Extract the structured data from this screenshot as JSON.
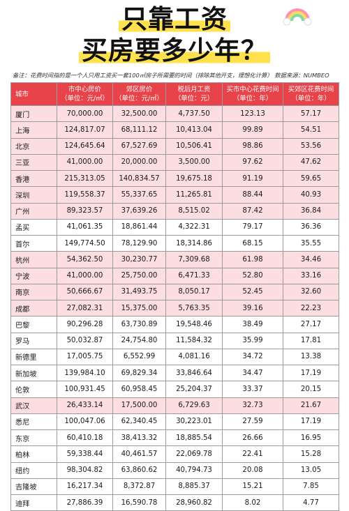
{
  "title_line1": "只靠工资",
  "title_line2": "买房要多少年？",
  "note": "备注：花费时间指的是一个人只用工资买一套100㎡房子所需要的时间（排除其他开支，理想化计算）  数据来源：NUMBEO",
  "headers": [
    {
      "line1": "城市",
      "line2": ""
    },
    {
      "line1": "市中心房价",
      "line2": "（单位：元/㎡）"
    },
    {
      "line1": "郊区房价",
      "line2": "（单位：元/㎡）"
    },
    {
      "line1": "税后月工资",
      "line2": "（单位：元）"
    },
    {
      "line1": "买市中心花费时间",
      "line2": "（单位：年）"
    },
    {
      "line1": "买郊区花费时间",
      "line2": "（单位：年）"
    }
  ],
  "rows": [
    {
      "city": "厦门",
      "center": "70,000.00",
      "suburb": "32,500.00",
      "salary": "4,737.50",
      "center_years": "123.13",
      "suburb_years": "57.17",
      "highlight": true
    },
    {
      "city": "上海",
      "center": "124,817.07",
      "suburb": "68,111.12",
      "salary": "10,413.04",
      "center_years": "99.89",
      "suburb_years": "54.51",
      "highlight": true
    },
    {
      "city": "北京",
      "center": "124,645.64",
      "suburb": "67,527.69",
      "salary": "10,506.41",
      "center_years": "98.86",
      "suburb_years": "53.56",
      "highlight": true
    },
    {
      "city": "三亚",
      "center": "41,000.00",
      "suburb": "20,000.00",
      "salary": "3,500.00",
      "center_years": "97.62",
      "suburb_years": "47.62",
      "highlight": true
    },
    {
      "city": "香港",
      "center": "215,313.05",
      "suburb": "140,834.57",
      "salary": "19,675.18",
      "center_years": "91.19",
      "suburb_years": "59.65",
      "highlight": true
    },
    {
      "city": "深圳",
      "center": "119,558.37",
      "suburb": "55,337.65",
      "salary": "11,265.81",
      "center_years": "88.44",
      "suburb_years": "40.93",
      "highlight": true
    },
    {
      "city": "广州",
      "center": "89,323.57",
      "suburb": "37,639.26",
      "salary": "8,515.02",
      "center_years": "87.42",
      "suburb_years": "36.84",
      "highlight": true
    },
    {
      "city": "孟买",
      "center": "41,061.35",
      "suburb": "18,861.44",
      "salary": "4,322.31",
      "center_years": "79.17",
      "suburb_years": "36.36",
      "highlight": false
    },
    {
      "city": "首尔",
      "center": "149,774.50",
      "suburb": "78,129.90",
      "salary": "18,314.86",
      "center_years": "68.15",
      "suburb_years": "35.55",
      "highlight": false
    },
    {
      "city": "杭州",
      "center": "54,362.50",
      "suburb": "30,230.77",
      "salary": "7,309.68",
      "center_years": "61.98",
      "suburb_years": "34.46",
      "highlight": true
    },
    {
      "city": "宁波",
      "center": "41,000.00",
      "suburb": "25,750.00",
      "salary": "6,471.33",
      "center_years": "52.80",
      "suburb_years": "33.16",
      "highlight": true
    },
    {
      "city": "南京",
      "center": "50,666.67",
      "suburb": "31,493.75",
      "salary": "8,050.17",
      "center_years": "52.45",
      "suburb_years": "32.60",
      "highlight": true
    },
    {
      "city": "成都",
      "center": "27,082.31",
      "suburb": "15,375.00",
      "salary": "5,763.35",
      "center_years": "39.16",
      "suburb_years": "22.23",
      "highlight": true
    },
    {
      "city": "巴黎",
      "center": "90,296.28",
      "suburb": "63,730.89",
      "salary": "19,548.46",
      "center_years": "38.49",
      "suburb_years": "27.17",
      "highlight": false
    },
    {
      "city": "罗马",
      "center": "50,032.87",
      "suburb": "24,754.80",
      "salary": "11,584.32",
      "center_years": "35.99",
      "suburb_years": "17.81",
      "highlight": false
    },
    {
      "city": "新德里",
      "center": "17,005.75",
      "suburb": "6,552.99",
      "salary": "4,081.16",
      "center_years": "34.72",
      "suburb_years": "13.38",
      "highlight": false
    },
    {
      "city": "新加坡",
      "center": "139,984.10",
      "suburb": "69,829.34",
      "salary": "33,846.64",
      "center_years": "34.47",
      "suburb_years": "17.19",
      "highlight": false
    },
    {
      "city": "伦敦",
      "center": "100,931.45",
      "suburb": "60,958.45",
      "salary": "25,204.37",
      "center_years": "33.37",
      "suburb_years": "20.15",
      "highlight": false
    },
    {
      "city": "武汉",
      "center": "26,433.14",
      "suburb": "17,500.00",
      "salary": "6,729.63",
      "center_years": "32.73",
      "suburb_years": "21.67",
      "highlight": true
    },
    {
      "city": "悉尼",
      "center": "100,047.06",
      "suburb": "62,340.45",
      "salary": "30,223.01",
      "center_years": "27.59",
      "suburb_years": "17.19",
      "highlight": false
    },
    {
      "city": "东京",
      "center": "60,410.18",
      "suburb": "38,413.32",
      "salary": "18,885.54",
      "center_years": "26.66",
      "suburb_years": "16.95",
      "highlight": false
    },
    {
      "city": "柏林",
      "center": "59,338.44",
      "suburb": "40,461.57",
      "salary": "22,069.78",
      "center_years": "22.41",
      "suburb_years": "15.28",
      "highlight": false
    },
    {
      "city": "纽约",
      "center": "98,304.82",
      "suburb": "63,860.62",
      "salary": "40,794.73",
      "center_years": "20.08",
      "suburb_years": "13.05",
      "highlight": false
    },
    {
      "city": "吉隆坡",
      "center": "16,217.34",
      "suburb": "8,372.87",
      "salary": "8,885.37",
      "center_years": "15.21",
      "suburb_years": "7.85",
      "highlight": false
    },
    {
      "city": "迪拜",
      "center": "27,886.39",
      "suburb": "16,590.78",
      "salary": "28,960.82",
      "center_years": "8.02",
      "suburb_years": "4.77",
      "highlight": false
    }
  ],
  "colors": {
    "header_bg": "#e8434a",
    "highlight_row": "#fbdde2",
    "title_highlight": "#ffe14d"
  }
}
